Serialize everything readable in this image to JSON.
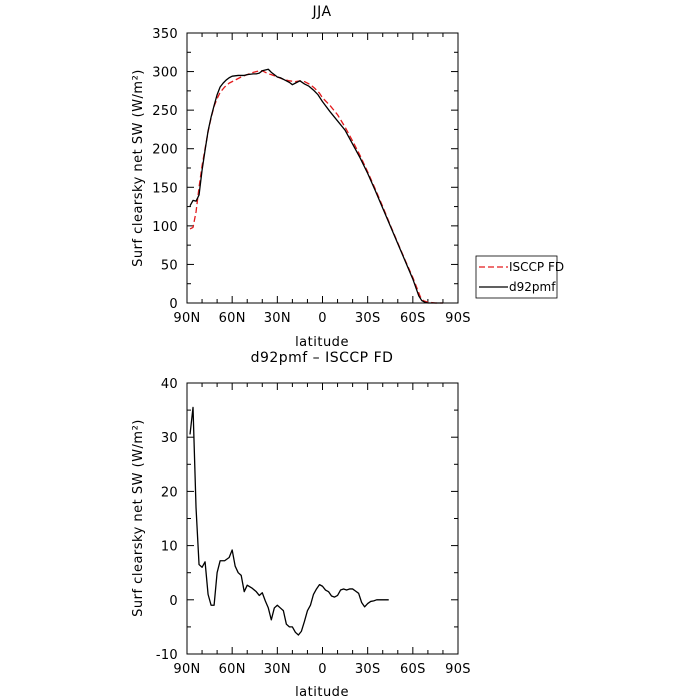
{
  "chart_data": [
    {
      "type": "line",
      "title": "JJA",
      "xlabel": "latitude",
      "ylabel": "Surf clearsky net SW (W/m²)",
      "xlim": [
        90,
        -90
      ],
      "ylim": [
        0,
        350
      ],
      "x_ticks": [
        {
          "value": 90,
          "label": "90N"
        },
        {
          "value": 60,
          "label": "60N"
        },
        {
          "value": 30,
          "label": "30N"
        },
        {
          "value": 0,
          "label": "0"
        },
        {
          "value": -30,
          "label": "30S"
        },
        {
          "value": -60,
          "label": "60S"
        },
        {
          "value": -90,
          "label": "90S"
        }
      ],
      "y_ticks": [
        0,
        50,
        100,
        150,
        200,
        250,
        300,
        350
      ],
      "legend": "outside-right",
      "series": [
        {
          "name": "ISCCP FD",
          "color": "#e31a1c",
          "dash": "dashed",
          "points": [
            [
              88,
              96
            ],
            [
              86,
              98
            ],
            [
              84,
              118
            ],
            [
              82,
              150
            ],
            [
              80,
              178
            ],
            [
              78,
              200
            ],
            [
              76,
              222
            ],
            [
              74,
              240
            ],
            [
              72,
              255
            ],
            [
              70,
              265
            ],
            [
              68,
              273
            ],
            [
              65,
              280
            ],
            [
              62,
              285
            ],
            [
              58,
              289
            ],
            [
              54,
              293
            ],
            [
              50,
              296
            ],
            [
              46,
              299
            ],
            [
              42,
              301
            ],
            [
              40,
              301
            ],
            [
              38,
              299
            ],
            [
              36,
              297
            ],
            [
              34,
              296
            ],
            [
              30,
              293
            ],
            [
              26,
              290
            ],
            [
              22,
              288
            ],
            [
              18,
              287
            ],
            [
              15,
              288
            ],
            [
              12,
              287
            ],
            [
              8,
              283
            ],
            [
              5,
              278
            ],
            [
              2,
              272
            ],
            [
              0,
              266
            ],
            [
              -5,
              256
            ],
            [
              -10,
              244
            ],
            [
              -15,
              228
            ],
            [
              -20,
              210
            ],
            [
              -25,
              191
            ],
            [
              -30,
              170
            ],
            [
              -35,
              148
            ],
            [
              -40,
              125
            ],
            [
              -45,
              101
            ],
            [
              -50,
              78
            ],
            [
              -55,
              55
            ],
            [
              -60,
              33
            ],
            [
              -63,
              18
            ],
            [
              -65,
              8
            ],
            [
              -67,
              3
            ],
            [
              -70,
              1
            ],
            [
              -75,
              0
            ],
            [
              -80,
              0
            ]
          ]
        },
        {
          "name": "d92pmf",
          "color": "#000000",
          "dash": "solid",
          "points": [
            [
              88,
              126
            ],
            [
              86,
              133
            ],
            [
              84,
              132
            ],
            [
              82,
              140
            ],
            [
              80,
              172
            ],
            [
              78,
              198
            ],
            [
              76,
              223
            ],
            [
              74,
              241
            ],
            [
              72,
              256
            ],
            [
              70,
              270
            ],
            [
              68,
              280
            ],
            [
              66,
              285
            ],
            [
              64,
              289
            ],
            [
              62,
              292
            ],
            [
              60,
              294
            ],
            [
              56,
              295
            ],
            [
              54,
              295
            ],
            [
              52,
              295
            ],
            [
              50,
              296
            ],
            [
              46,
              297
            ],
            [
              44,
              297
            ],
            [
              42,
              298
            ],
            [
              40,
              301
            ],
            [
              36,
              303
            ],
            [
              34,
              299
            ],
            [
              32,
              296
            ],
            [
              30,
              293
            ],
            [
              28,
              292
            ],
            [
              25,
              289
            ],
            [
              22,
              286
            ],
            [
              20,
              283
            ],
            [
              18,
              285
            ],
            [
              15,
              288
            ],
            [
              12,
              284
            ],
            [
              9,
              281
            ],
            [
              6,
              276
            ],
            [
              3,
              270
            ],
            [
              0,
              261
            ],
            [
              -5,
              248
            ],
            [
              -10,
              236
            ],
            [
              -15,
              224
            ],
            [
              -20,
              206
            ],
            [
              -25,
              188
            ],
            [
              -30,
              168
            ],
            [
              -35,
              146
            ],
            [
              -40,
              123
            ],
            [
              -45,
              100
            ],
            [
              -50,
              77
            ],
            [
              -55,
              54
            ],
            [
              -60,
              31
            ],
            [
              -62,
              20
            ],
            [
              -64,
              9
            ],
            [
              -66,
              3
            ],
            [
              -68,
              1
            ],
            [
              -70,
              0
            ],
            [
              -75,
              0
            ],
            [
              -80,
              0
            ]
          ]
        }
      ]
    },
    {
      "type": "line",
      "title": "d92pmf – ISCCP FD",
      "xlabel": "latitude",
      "ylabel": "Surf clearsky net SW (W/m²)",
      "xlim": [
        90,
        -90
      ],
      "ylim": [
        -10,
        40
      ],
      "x_ticks": [
        {
          "value": 90,
          "label": "90N"
        },
        {
          "value": 60,
          "label": "60N"
        },
        {
          "value": 30,
          "label": "30N"
        },
        {
          "value": 0,
          "label": "0"
        },
        {
          "value": -30,
          "label": "30S"
        },
        {
          "value": -60,
          "label": "60S"
        },
        {
          "value": -90,
          "label": "90S"
        }
      ],
      "y_ticks": [
        -10,
        0,
        10,
        20,
        30,
        40
      ],
      "series": [
        {
          "color": "#000000",
          "dash": "solid",
          "points": [
            [
              88,
              30.5
            ],
            [
              86,
              35.5
            ],
            [
              84,
              17
            ],
            [
              82,
              6.5
            ],
            [
              80,
              6
            ],
            [
              78,
              7
            ],
            [
              76,
              1
            ],
            [
              74,
              -1
            ],
            [
              72,
              -1
            ],
            [
              70,
              5
            ],
            [
              68,
              7.2
            ],
            [
              65,
              7.2
            ],
            [
              62,
              7.8
            ],
            [
              60,
              9.2
            ],
            [
              58,
              6.2
            ],
            [
              56,
              5
            ],
            [
              54,
              4.5
            ],
            [
              52,
              1.5
            ],
            [
              50,
              2.7
            ],
            [
              47,
              2.2
            ],
            [
              44,
              1.5
            ],
            [
              42,
              0.8
            ],
            [
              40,
              1.3
            ],
            [
              38,
              -0.2
            ],
            [
              36,
              -1.5
            ],
            [
              34,
              -3.7
            ],
            [
              32,
              -1.5
            ],
            [
              30,
              -1
            ],
            [
              28,
              -1.5
            ],
            [
              26,
              -2
            ],
            [
              24,
              -4.5
            ],
            [
              22,
              -5
            ],
            [
              20,
              -5
            ],
            [
              18,
              -6
            ],
            [
              16,
              -6.5
            ],
            [
              14,
              -5.8
            ],
            [
              12,
              -4
            ],
            [
              10,
              -2
            ],
            [
              8,
              -1
            ],
            [
              6,
              1
            ],
            [
              4,
              2
            ],
            [
              2,
              2.8
            ],
            [
              0,
              2.5
            ],
            [
              -2,
              1.8
            ],
            [
              -4,
              1.5
            ],
            [
              -6,
              0.7
            ],
            [
              -8,
              0.5
            ],
            [
              -10,
              0.8
            ],
            [
              -12,
              1.8
            ],
            [
              -14,
              2
            ],
            [
              -16,
              1.8
            ],
            [
              -18,
              2
            ],
            [
              -20,
              2
            ],
            [
              -22,
              1.6
            ],
            [
              -24,
              1.2
            ],
            [
              -26,
              -0.5
            ],
            [
              -28,
              -1.3
            ],
            [
              -30,
              -0.7
            ],
            [
              -32,
              -0.3
            ],
            [
              -34,
              -0.2
            ],
            [
              -36,
              0
            ],
            [
              -40,
              0
            ],
            [
              -44,
              0
            ]
          ]
        }
      ]
    }
  ]
}
